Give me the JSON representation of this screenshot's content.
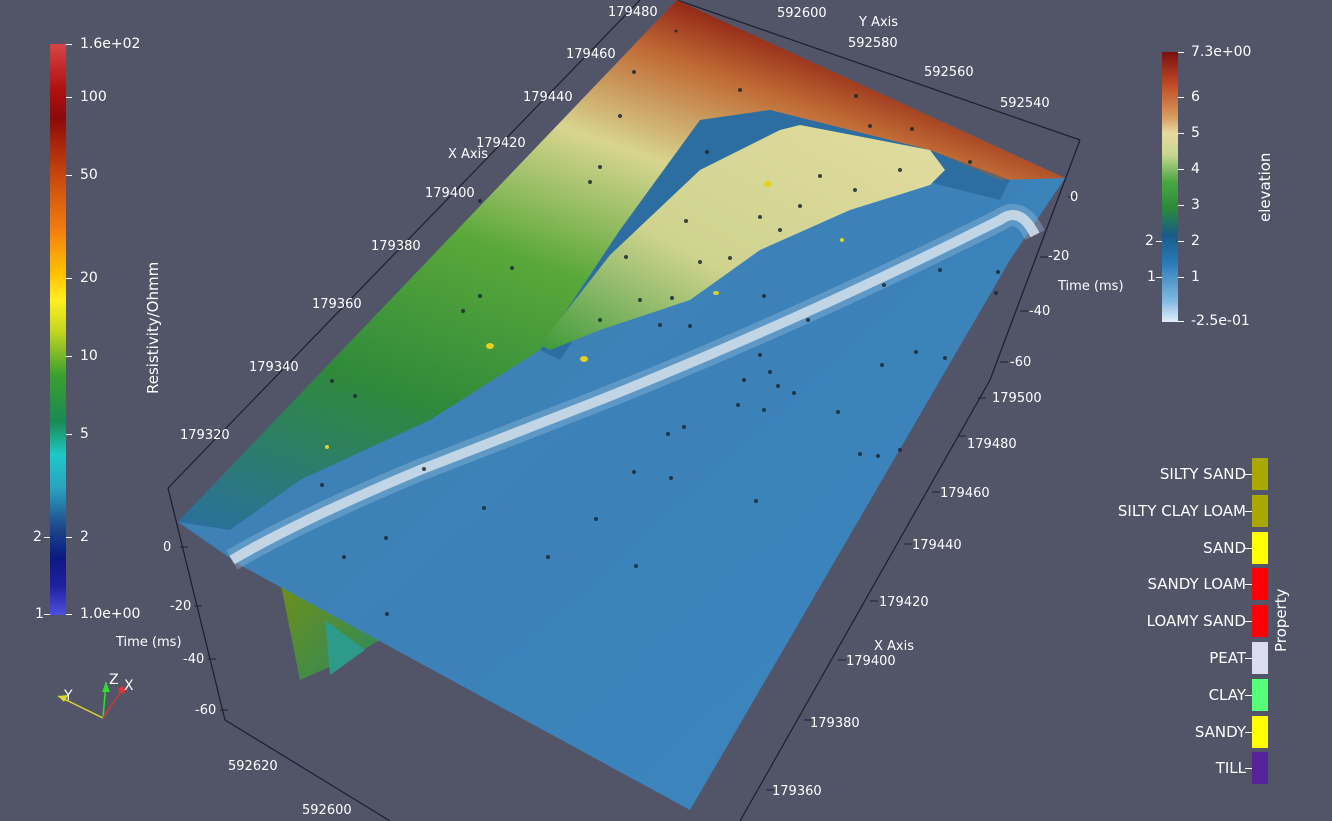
{
  "resistivity_bar": {
    "title": "Resistivity/Ohmm",
    "labels": [
      "1.6e+02",
      "100",
      "50",
      "20",
      "10",
      "5",
      "2",
      "1.0e+00"
    ],
    "minor_left": [
      "2",
      "1"
    ]
  },
  "elevation_bar": {
    "title": "elevation",
    "labels": [
      "7.3e+00",
      "6",
      "5",
      "4",
      "3",
      "2",
      "1",
      "-2.5e-01"
    ],
    "minor_left": [
      "2",
      "1"
    ]
  },
  "property_legend": {
    "title": "Property",
    "items": [
      {
        "label": "SILTY SAND",
        "color": "#a8a800"
      },
      {
        "label": "SILTY CLAY LOAM",
        "color": "#a8a800"
      },
      {
        "label": "SAND",
        "color": "#ffff00"
      },
      {
        "label": "SANDY LOAM",
        "color": "#ff0000"
      },
      {
        "label": "LOAMY SAND",
        "color": "#ff0000"
      },
      {
        "label": "PEAT",
        "color": "#dcdcee"
      },
      {
        "label": "CLAY",
        "color": "#55ff77"
      },
      {
        "label": "SANDY",
        "color": "#ffff00"
      },
      {
        "label": "TILL",
        "color": "#552299"
      }
    ]
  },
  "axes": {
    "y_axis_title": "Y Axis",
    "x_axis_title_top": "X Axis",
    "x_axis_title_right": "X Axis",
    "time_title_right": "Time (ms)",
    "time_title_left": "Time (ms)",
    "top_y_ticks": [
      "592600",
      "592580",
      "592560",
      "592540"
    ],
    "top_x_ticks": [
      "179480",
      "179460",
      "179440",
      "179420",
      "179400",
      "179380",
      "179360",
      "179340",
      "179320"
    ],
    "right_time_ticks": [
      "0",
      "-20",
      "-40",
      "-60"
    ],
    "right_x_ticks": [
      "179500",
      "179480",
      "179460",
      "179440",
      "179420",
      "179400",
      "179380",
      "179360"
    ],
    "left_time_ticks": [
      "0",
      "-20",
      "-40",
      "-60"
    ],
    "bottom_y_ticks": [
      "592620",
      "592600"
    ]
  },
  "orientation": {
    "y": "Y",
    "z": "Z",
    "x": "X"
  }
}
